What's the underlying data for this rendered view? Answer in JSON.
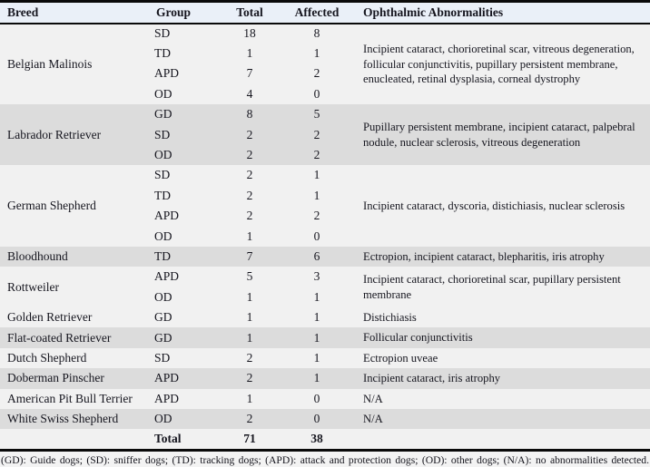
{
  "table": {
    "headers": {
      "breed": "Breed",
      "group": "Group",
      "total": "Total",
      "affected": "Affected",
      "abnormalities": "Ophthalmic Abnormalities"
    },
    "blocks": [
      {
        "breed": "Belgian Malinois",
        "rows": [
          {
            "group": "SD",
            "total": "18",
            "affected": "8"
          },
          {
            "group": "TD",
            "total": "1",
            "affected": "1"
          },
          {
            "group": "APD",
            "total": "7",
            "affected": "2"
          },
          {
            "group": "OD",
            "total": "4",
            "affected": "0"
          }
        ],
        "abnormalities": "Incipient cataract, chorioretinal scar, vitreous degeneration, follicular conjunctivitis, pupillary persistent membrane, enucleated, retinal dysplasia, corneal dystrophy"
      },
      {
        "breed": "Labrador Retriever",
        "rows": [
          {
            "group": "GD",
            "total": "8",
            "affected": "5"
          },
          {
            "group": "SD",
            "total": "2",
            "affected": "2"
          },
          {
            "group": "OD",
            "total": "2",
            "affected": "2"
          }
        ],
        "abnormalities": "Pupillary persistent membrane, incipient cataract, palpebral nodule, nuclear sclerosis, vitreous degeneration"
      },
      {
        "breed": "German Shepherd",
        "rows": [
          {
            "group": "SD",
            "total": "2",
            "affected": "1"
          },
          {
            "group": "TD",
            "total": "2",
            "affected": "1"
          },
          {
            "group": "APD",
            "total": "2",
            "affected": "2"
          },
          {
            "group": "OD",
            "total": "1",
            "affected": "0"
          }
        ],
        "abnormalities": "Incipient cataract, dyscoria, distichiasis, nuclear sclerosis"
      },
      {
        "breed": "Bloodhound",
        "rows": [
          {
            "group": "TD",
            "total": "7",
            "affected": "6"
          }
        ],
        "abnormalities": "Ectropion, incipient cataract, blepharitis, iris atrophy"
      },
      {
        "breed": "Rottweiler",
        "rows": [
          {
            "group": "APD",
            "total": "5",
            "affected": "3"
          },
          {
            "group": "OD",
            "total": "1",
            "affected": "1"
          }
        ],
        "abnormalities": "Incipient cataract, chorioretinal scar, pupillary persistent membrane"
      },
      {
        "breed": "Golden Retriever",
        "rows": [
          {
            "group": "GD",
            "total": "1",
            "affected": "1"
          }
        ],
        "abnormalities": "Distichiasis"
      },
      {
        "breed": "Flat-coated Retriever",
        "rows": [
          {
            "group": "GD",
            "total": "1",
            "affected": "1"
          }
        ],
        "abnormalities": "Follicular conjunctivitis"
      },
      {
        "breed": "Dutch Shepherd",
        "rows": [
          {
            "group": "SD",
            "total": "2",
            "affected": "1"
          }
        ],
        "abnormalities": "Ectropion uveae"
      },
      {
        "breed": "Doberman Pinscher",
        "rows": [
          {
            "group": "APD",
            "total": "2",
            "affected": "1"
          }
        ],
        "abnormalities": "Incipient cataract, iris atrophy"
      },
      {
        "breed": "American Pit Bull Terrier",
        "rows": [
          {
            "group": "APD",
            "total": "1",
            "affected": "0"
          }
        ],
        "abnormalities": "N/A"
      },
      {
        "breed": "White Swiss Shepherd",
        "rows": [
          {
            "group": "OD",
            "total": "2",
            "affected": "0"
          }
        ],
        "abnormalities": "N/A"
      }
    ],
    "total_row": {
      "label": "Total",
      "total": "71",
      "affected": "38"
    }
  },
  "footnote": "(GD): Guide dogs; (SD): sniffer dogs; (TD): tracking dogs; (APD): attack and protection dogs; (OD): other dogs; (N/A): no abnormalities detected.",
  "colors": {
    "stripe_grey": "#dcdcdc",
    "row_plain": "#f1f1f1",
    "header_bg": "#eaf0f8",
    "border": "#0a0a0a",
    "text": "#16161f"
  }
}
